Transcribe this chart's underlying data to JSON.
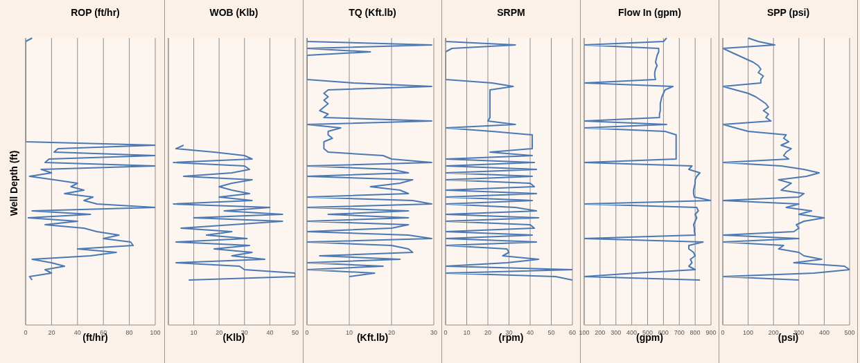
{
  "chart_data": [
    {
      "type": "line",
      "orientation": "horizontal",
      "title": "ROP (ft/hr)",
      "xlabel": "(ft/hr)",
      "ylabel": "Well Depth (ft)",
      "xlim": [
        0,
        100
      ],
      "xticks": [
        0,
        20,
        40,
        60,
        80,
        100
      ],
      "grid": "x",
      "color": "#4a78b4",
      "categories": [
        null,
        null,
        null,
        null,
        null,
        null,
        null,
        null,
        null,
        null,
        null,
        null,
        null,
        null,
        null,
        null,
        null,
        null,
        null,
        null,
        null,
        null,
        null,
        null,
        null,
        null,
        null,
        null,
        null,
        null,
        null,
        null,
        null,
        null,
        null,
        null,
        null,
        null,
        null,
        null,
        null,
        null,
        null,
        null,
        null,
        null,
        null,
        null,
        null,
        null,
        null,
        null,
        null,
        null,
        null,
        null,
        null,
        null,
        null,
        null,
        null,
        null,
        null,
        null,
        null,
        null,
        null,
        null,
        null,
        null,
        null,
        null,
        null,
        null,
        null,
        null,
        null,
        null,
        null,
        null,
        null,
        null,
        null,
        null
      ],
      "values": [
        5,
        0,
        0,
        0,
        0,
        0,
        0,
        0,
        0,
        0,
        0,
        0,
        0,
        0,
        0,
        0,
        0,
        0,
        0,
        0,
        0,
        0,
        0,
        0,
        0,
        0,
        0,
        0,
        0,
        0,
        0,
        100,
        25,
        22,
        100,
        18,
        15,
        100,
        12,
        20,
        3,
        22,
        40,
        35,
        45,
        30,
        52,
        45,
        55,
        100,
        5,
        50,
        2,
        40,
        15,
        45,
        55,
        72,
        60,
        81,
        83,
        40,
        70,
        50,
        5,
        20,
        30,
        15,
        20,
        3,
        5,
        null,
        null,
        null,
        null,
        null,
        null,
        null,
        null,
        null,
        null,
        null,
        null,
        null
      ]
    },
    {
      "type": "line",
      "orientation": "horizontal",
      "title": "WOB (Klb)",
      "xlabel": "(Klb)",
      "xlim": [
        0,
        50
      ],
      "xticks": [
        10,
        20,
        30,
        40,
        50
      ],
      "grid": "x",
      "color": "#4a78b4",
      "categories": [
        null,
        null,
        null,
        null,
        null,
        null,
        null,
        null,
        null,
        null,
        null,
        null,
        null,
        null,
        null,
        null,
        null,
        null,
        null,
        null,
        null,
        null,
        null,
        null,
        null,
        null,
        null,
        null,
        null,
        null,
        null,
        null,
        null,
        null,
        null,
        null,
        null,
        null,
        null,
        null,
        null,
        null,
        null,
        null,
        null,
        null,
        null,
        null,
        null,
        null,
        null,
        null,
        null,
        null,
        null,
        null,
        null,
        null,
        null,
        null,
        null,
        null,
        null,
        null,
        null,
        null,
        null,
        null,
        null,
        null,
        null,
        null,
        null,
        null,
        null,
        null,
        null,
        null,
        null,
        null,
        null,
        null,
        null,
        null
      ],
      "values": [
        null,
        null,
        null,
        null,
        null,
        null,
        null,
        null,
        null,
        null,
        null,
        null,
        null,
        null,
        null,
        null,
        null,
        null,
        null,
        null,
        null,
        null,
        null,
        null,
        null,
        null,
        null,
        null,
        null,
        null,
        null,
        6,
        3,
        18,
        30,
        33,
        2,
        30,
        32,
        25,
        6,
        33,
        25,
        20,
        25,
        32,
        20,
        33,
        2,
        40,
        22,
        45,
        10,
        45,
        25,
        5,
        25,
        15,
        31,
        3,
        32,
        18,
        33,
        25,
        38,
        3,
        28,
        30,
        50,
        50,
        8,
        null,
        null,
        null,
        null,
        null,
        null,
        null,
        null,
        null,
        null,
        null,
        null,
        null
      ]
    },
    {
      "type": "line",
      "orientation": "horizontal",
      "title": "TQ (Kft.lb)",
      "xlabel": "(Kft.lb)",
      "xlim": [
        0,
        30
      ],
      "xticks": [
        0,
        10,
        20,
        30
      ],
      "grid": "x",
      "color": "#4a78b4",
      "categories": [
        null,
        null,
        null,
        null,
        null,
        null,
        null,
        null,
        null,
        null,
        null,
        null,
        null,
        null,
        null,
        null,
        null,
        null,
        null,
        null,
        null,
        null,
        null,
        null,
        null,
        null,
        null,
        null,
        null,
        null,
        null,
        null,
        null,
        null,
        null,
        null,
        null,
        null,
        null,
        null,
        null,
        null,
        null,
        null,
        null,
        null,
        null,
        null,
        null,
        null,
        null,
        null,
        null,
        null,
        null,
        null,
        null,
        null,
        null,
        null,
        null,
        null,
        null,
        null,
        null,
        null,
        null,
        null,
        null,
        null,
        null,
        null,
        null,
        null,
        null,
        null,
        null,
        null,
        null,
        null,
        null,
        null,
        null,
        null
      ],
      "values": [
        0,
        0,
        29.5,
        0,
        15,
        0,
        0,
        0,
        0,
        0,
        0,
        0,
        0,
        11,
        29.5,
        5,
        4,
        5,
        4,
        5,
        4,
        3,
        5,
        4,
        29.5,
        0,
        8,
        5,
        5,
        6,
        4,
        4,
        4,
        5,
        18,
        20,
        29.5,
        0,
        20,
        24,
        0,
        25,
        22,
        15,
        22,
        24,
        0,
        25,
        29.5,
        0,
        24,
        5,
        24,
        0,
        24,
        20,
        0,
        24,
        29.5,
        0,
        20,
        24,
        25,
        3,
        22,
        0,
        18,
        0,
        16,
        10,
        null,
        null,
        null,
        null,
        null,
        null,
        null,
        null,
        null,
        null,
        null,
        null,
        null,
        null
      ]
    },
    {
      "type": "line",
      "orientation": "horizontal",
      "title": "SRPM",
      "xlabel": "(rpm)",
      "xlim": [
        0,
        60
      ],
      "xticks": [
        0,
        10,
        20,
        30,
        40,
        50,
        60
      ],
      "grid": "x",
      "color": "#4a78b4",
      "categories": [
        null,
        null,
        null,
        null,
        null,
        null,
        null,
        null,
        null,
        null,
        null,
        null,
        null,
        null,
        null,
        null,
        null,
        null,
        null,
        null,
        null,
        null,
        null,
        null,
        null,
        null,
        null,
        null,
        null,
        null,
        null,
        null,
        null,
        null,
        null,
        null,
        null,
        null,
        null,
        null,
        null,
        null,
        null,
        null,
        null,
        null,
        null,
        null,
        null,
        null,
        null,
        null,
        null,
        null,
        null,
        null,
        null,
        null,
        null,
        null,
        null,
        null,
        null,
        null,
        null,
        null,
        null,
        null,
        null,
        null,
        null,
        null,
        null,
        null,
        null,
        null,
        null,
        null,
        null,
        null,
        null,
        null,
        null,
        null
      ],
      "values": [
        0,
        0,
        33,
        3,
        0,
        0,
        0,
        0,
        0,
        0,
        0,
        0,
        0,
        22,
        32,
        21,
        21,
        21,
        21,
        21,
        21,
        21,
        21,
        21,
        20,
        33,
        0,
        22,
        41,
        41,
        41,
        41,
        41,
        21,
        41,
        0,
        42,
        0,
        43,
        0,
        41,
        0,
        40,
        42,
        0,
        43,
        0,
        41,
        0,
        33,
        43,
        0,
        44,
        0,
        40,
        42,
        0,
        41,
        0,
        43,
        0,
        29,
        30,
        27,
        44,
        29,
        0,
        60,
        0,
        52,
        60,
        null,
        null,
        null,
        null,
        null,
        null,
        null,
        null,
        null,
        null,
        null,
        null,
        null
      ]
    },
    {
      "type": "line",
      "orientation": "horizontal",
      "title": "Flow In (gpm)",
      "xlabel": "(gpm)",
      "xlim": [
        100,
        900
      ],
      "xticks": [
        100,
        200,
        300,
        400,
        500,
        600,
        700,
        800,
        900
      ],
      "grid": "x",
      "color": "#4a78b4",
      "categories": [
        null,
        null,
        null,
        null,
        null,
        null,
        null,
        null,
        null,
        null,
        null,
        null,
        null,
        null,
        null,
        null,
        null,
        null,
        null,
        null,
        null,
        null,
        null,
        null,
        null,
        null,
        null,
        null,
        null,
        null,
        null,
        null,
        null,
        null,
        null,
        null,
        null,
        null,
        null,
        null,
        null,
        null,
        null,
        null,
        null,
        null,
        null,
        null,
        null,
        null,
        null,
        null,
        null,
        null,
        null,
        null,
        null,
        null,
        null,
        null,
        null,
        null,
        null,
        null,
        null,
        null,
        null,
        null,
        null,
        null,
        null,
        null,
        null,
        null,
        null,
        null,
        null,
        null,
        null,
        null,
        null,
        null,
        null,
        null
      ],
      "values": [
        620,
        600,
        100,
        570,
        570,
        560,
        555,
        550,
        560,
        550,
        545,
        545,
        550,
        100,
        660,
        610,
        600,
        590,
        585,
        580,
        580,
        580,
        575,
        575,
        100,
        620,
        100,
        610,
        680,
        680,
        680,
        680,
        680,
        680,
        680,
        680,
        100,
        780,
        760,
        830,
        810,
        800,
        800,
        795,
        790,
        790,
        795,
        900,
        100,
        810,
        820,
        800,
        810,
        800,
        790,
        795,
        795,
        800,
        100,
        850,
        760,
        760,
        790,
        800,
        770,
        780,
        760,
        800,
        420,
        100,
        830,
        null,
        null,
        null,
        null,
        null,
        null,
        null,
        null,
        null,
        null,
        null,
        null,
        null
      ]
    },
    {
      "type": "line",
      "orientation": "horizontal",
      "title": "SPP (psi)",
      "xlabel": "(psi)",
      "xlim": [
        0,
        500
      ],
      "xticks": [
        0,
        100,
        200,
        300,
        400,
        500
      ],
      "grid": "x",
      "color": "#4a78b4",
      "categories": [
        null,
        null,
        null,
        null,
        null,
        null,
        null,
        null,
        null,
        null,
        null,
        null,
        null,
        null,
        null,
        null,
        null,
        null,
        null,
        null,
        null,
        null,
        null,
        null,
        null,
        null,
        null,
        null,
        null,
        null,
        null,
        null,
        null,
        null,
        null,
        null,
        null,
        null,
        null,
        null,
        null,
        null,
        null,
        null,
        null,
        null,
        null,
        null,
        null,
        null,
        null,
        null,
        null,
        null,
        null,
        null,
        null,
        null,
        null,
        null,
        null,
        null,
        null,
        null,
        null,
        null,
        null,
        null,
        null,
        null,
        null,
        null,
        null,
        null,
        null,
        null,
        null,
        null,
        null,
        null,
        null,
        null,
        null,
        null
      ],
      "values": [
        100,
        140,
        205,
        0,
        30,
        60,
        90,
        120,
        140,
        150,
        140,
        160,
        150,
        150,
        0,
        50,
        100,
        130,
        150,
        170,
        180,
        160,
        180,
        170,
        190,
        0,
        50,
        100,
        250,
        240,
        260,
        230,
        270,
        250,
        240,
        260,
        0,
        230,
        320,
        380,
        330,
        220,
        270,
        250,
        230,
        320,
        300,
        0,
        300,
        250,
        350,
        300,
        400,
        320,
        290,
        300,
        280,
        0,
        300,
        0,
        240,
        220,
        300,
        320,
        390,
        280,
        480,
        500,
        360,
        0,
        300,
        null,
        null,
        null,
        null,
        null,
        null,
        null,
        null,
        null,
        null,
        null,
        null,
        null
      ]
    }
  ]
}
